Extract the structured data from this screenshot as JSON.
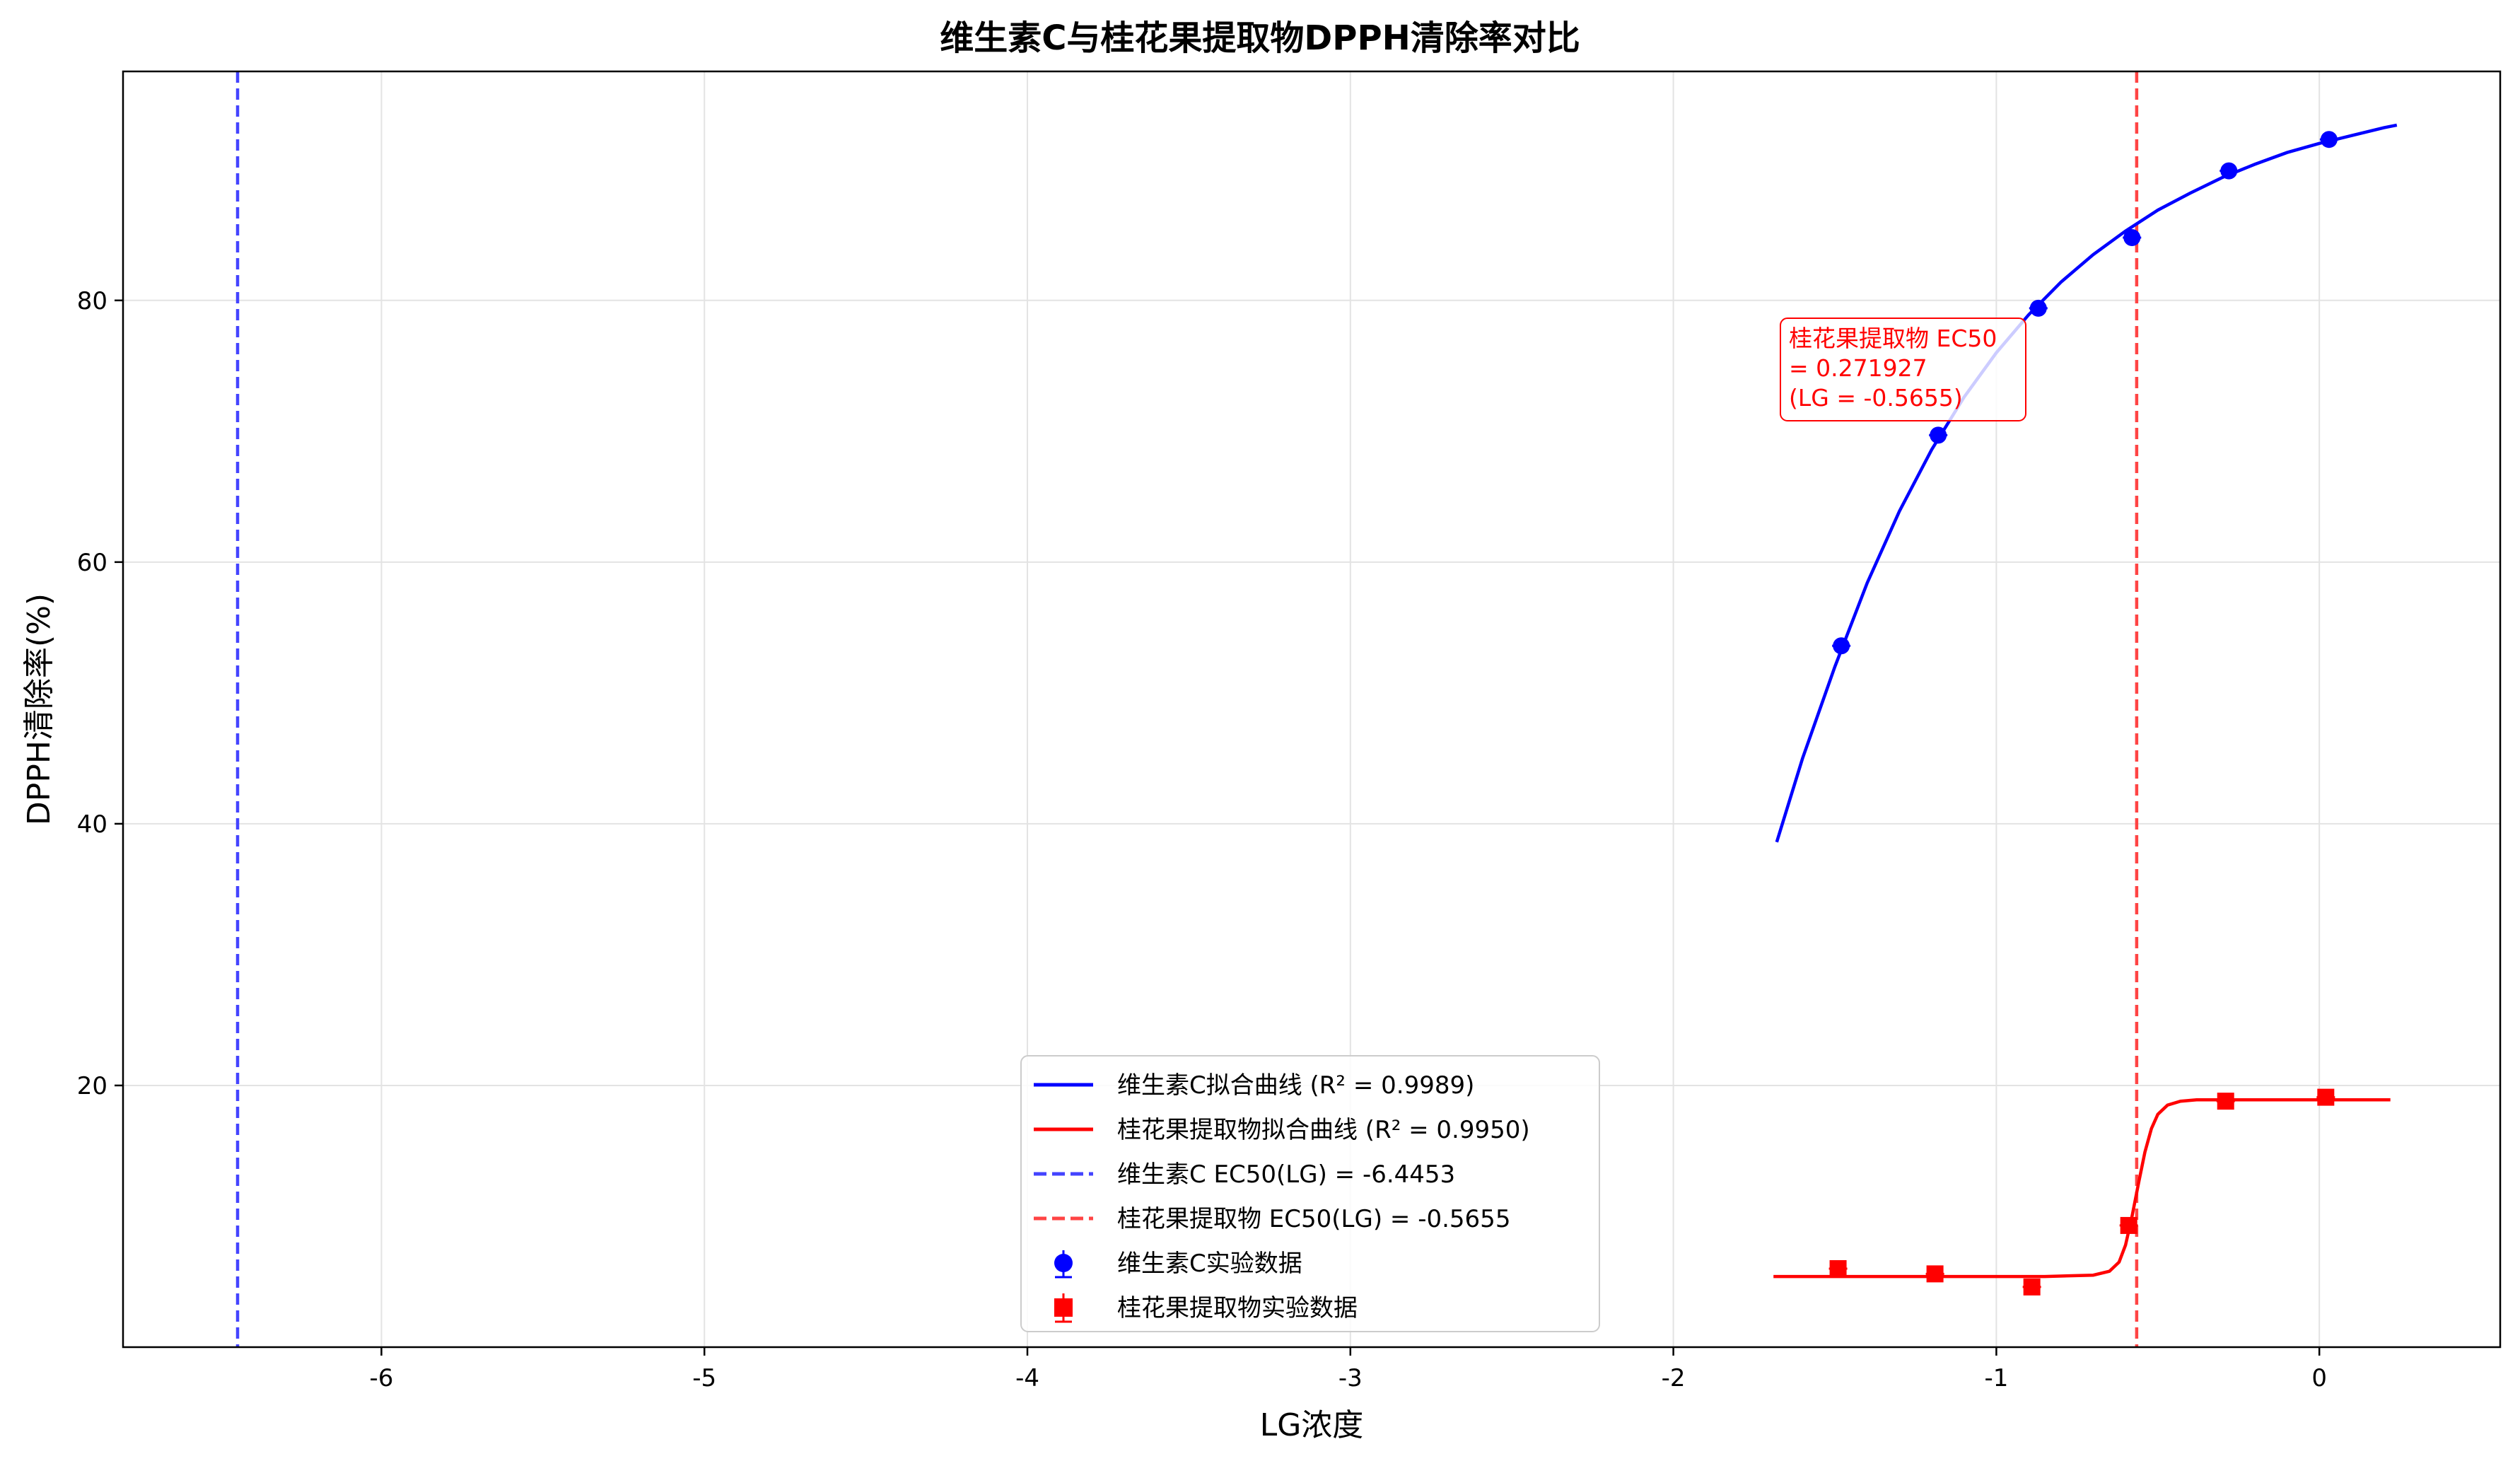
{
  "chart_data": {
    "type": "scatter",
    "title": "维生素C与桂花果提取物DPPH清除率对比",
    "xlabel": "LG浓度",
    "ylabel": "DPPH清除率(%)",
    "xlim": [
      -6.8,
      0.56
    ],
    "ylim": [
      0,
      97.5
    ],
    "xticks": [
      -6,
      -5,
      -4,
      -3,
      -2,
      -1,
      0
    ],
    "xtick_labels": [
      "-6",
      "-5",
      "-4",
      "-3",
      "-2",
      "-1",
      "0"
    ],
    "yticks": [
      20,
      40,
      60,
      80
    ],
    "ytick_labels": [
      "20",
      "40",
      "60",
      "80"
    ],
    "grid": true,
    "legend_position": "lower center",
    "series": [
      {
        "name": "维生素C实验数据",
        "kind": "points",
        "marker": "circle",
        "color": "#0000ff",
        "x": [
          -1.48,
          -1.18,
          -0.87,
          -0.58,
          -0.28,
          0.03
        ],
        "y": [
          53.6,
          69.7,
          79.4,
          84.8,
          89.9,
          92.3
        ]
      },
      {
        "name": "桂花果提取物实验数据",
        "kind": "points",
        "marker": "square",
        "color": "#ff0000",
        "x": [
          -1.49,
          -1.19,
          -0.89,
          -0.59,
          -0.29,
          0.02
        ],
        "y": [
          6.0,
          5.6,
          4.6,
          9.3,
          18.8,
          19.1
        ]
      },
      {
        "name": "维生素C拟合曲线 (R² = 0.9989)",
        "kind": "line",
        "color": "#0000ff",
        "x": [
          -1.68,
          -1.6,
          -1.5,
          -1.4,
          -1.3,
          -1.2,
          -1.1,
          -1.0,
          -0.9,
          -0.8,
          -0.7,
          -0.6,
          -0.5,
          -0.4,
          -0.3,
          -0.2,
          -0.1,
          0.0,
          0.1,
          0.2,
          0.24
        ],
        "y": [
          38.6,
          45.0,
          52.0,
          58.4,
          63.9,
          68.6,
          72.6,
          76.0,
          78.9,
          81.4,
          83.5,
          85.3,
          86.9,
          88.2,
          89.4,
          90.4,
          91.3,
          92.0,
          92.6,
          93.2,
          93.4
        ]
      },
      {
        "name": "桂花果提取物拟合曲线 (R² = 0.9950)",
        "kind": "line",
        "color": "#ff0000",
        "x": [
          -1.69,
          -1.2,
          -0.85,
          -0.7,
          -0.65,
          -0.62,
          -0.6,
          -0.58,
          -0.56,
          -0.54,
          -0.52,
          -0.5,
          -0.47,
          -0.43,
          -0.38,
          -0.3,
          -0.1,
          0.22
        ],
        "y": [
          5.4,
          5.4,
          5.4,
          5.5,
          5.8,
          6.5,
          7.8,
          10.0,
          12.5,
          14.9,
          16.7,
          17.8,
          18.5,
          18.8,
          18.9,
          18.9,
          18.9,
          18.9
        ]
      },
      {
        "name": "维生素C EC50(LG) = -6.4453",
        "kind": "vline",
        "color": "#4444ff",
        "x": -6.4453
      },
      {
        "name": "桂花果提取物 EC50(LG) = -0.5655",
        "kind": "vline",
        "color": "#ff4444",
        "x": -0.5655
      }
    ],
    "annotation": {
      "lines": [
        "桂花果提取物 EC50",
        "= 0.271927",
        "(LG = -0.5655)"
      ],
      "color": "#ff0000"
    },
    "legend": {
      "entries": [
        "维生素C拟合曲线 (R² = 0.9989)",
        "桂花果提取物拟合曲线 (R² = 0.9950)",
        "维生素C EC50(LG) = -6.4453",
        "桂花果提取物 EC50(LG) = -0.5655",
        "维生素C实验数据",
        "桂花果提取物实验数据"
      ]
    }
  }
}
